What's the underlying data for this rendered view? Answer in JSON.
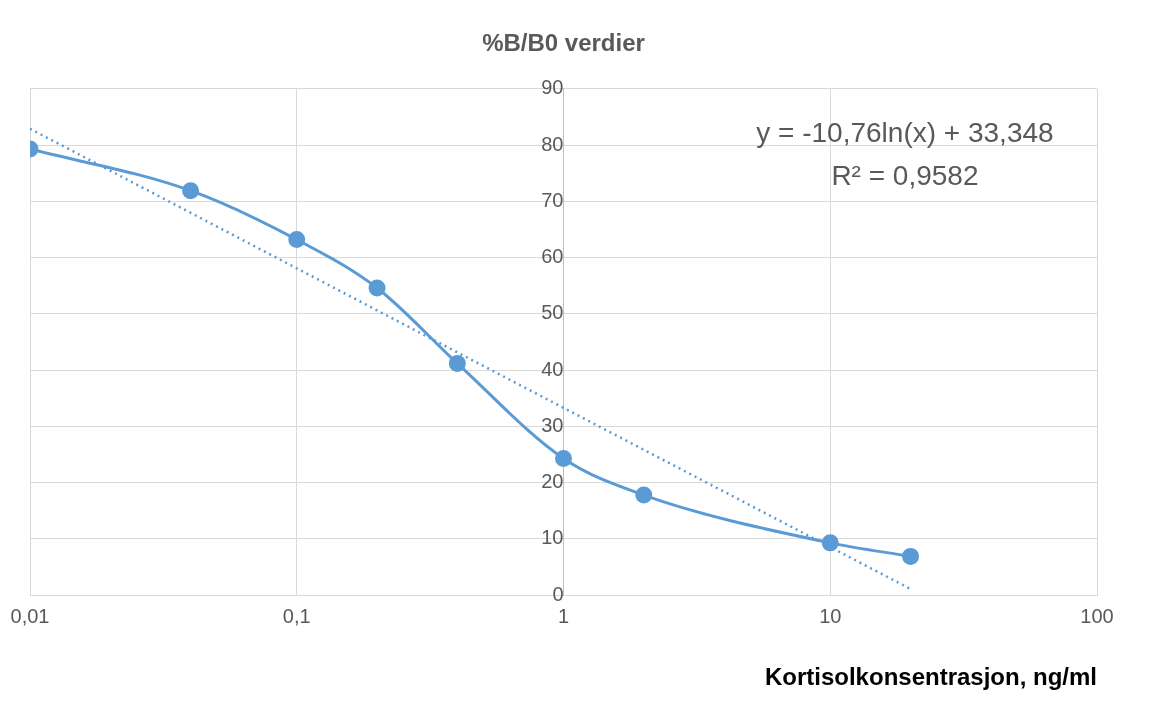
{
  "chart_data": {
    "type": "line",
    "title": "%B/B0 verdier",
    "xlabel": "Kortisolkonsentrasjon, ng/ml",
    "x": [
      0.01,
      0.04,
      0.1,
      0.2,
      0.4,
      1,
      2,
      10,
      20
    ],
    "series": [
      {
        "color": "#5b9bd5",
        "values": [
          79.3,
          71.9,
          63.2,
          54.6,
          41.2,
          24.3,
          17.8,
          9.3,
          6.9
        ],
        "marker": "circle",
        "line_style": "solid"
      },
      {
        "type": "line",
        "color": "#5b9bd5",
        "x": [
          0.01,
          1,
          20
        ],
        "values": [
          82.9,
          33.3,
          1.1
        ],
        "marker": "none",
        "line_style": "dotted"
      }
    ],
    "annotations": [
      "y = -10,76ln(x) + 33,348",
      "R² = 0,9582"
    ],
    "log": "x",
    "grid": true,
    "xlim": [
      0.01,
      100
    ],
    "xticks": [
      {
        "value": 0.01,
        "label": "0,01"
      },
      {
        "value": 0.1,
        "label": "0,1"
      },
      1,
      10,
      100
    ],
    "ylim": [
      0,
      90
    ],
    "yticks": [
      0,
      10,
      20,
      30,
      40,
      50,
      60,
      70,
      80,
      90
    ]
  }
}
